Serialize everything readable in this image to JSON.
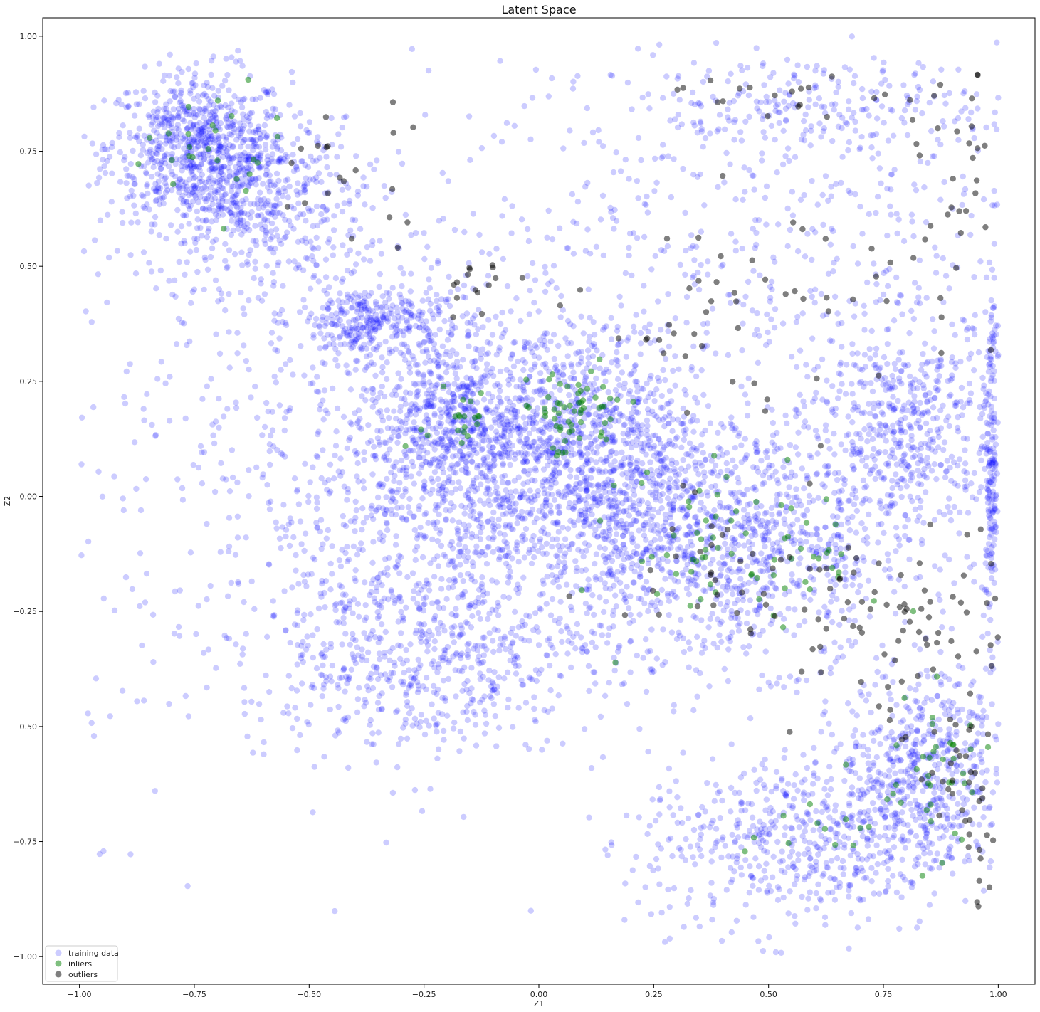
{
  "chart_data": {
    "type": "scatter",
    "title": "Latent Space",
    "xlabel": "Z1",
    "ylabel": "Z2",
    "xlim": [
      -1.08,
      1.08
    ],
    "ylim": [
      -1.06,
      1.04
    ],
    "x_ticks": [
      -1.0,
      -0.75,
      -0.5,
      -0.25,
      0.0,
      0.25,
      0.5,
      0.75,
      1.0
    ],
    "x_tick_labels": [
      "−1.00",
      "−0.75",
      "−0.50",
      "−0.25",
      "0.00",
      "0.25",
      "0.50",
      "0.75",
      "1.00"
    ],
    "y_ticks": [
      1.0,
      0.75,
      0.5,
      0.25,
      0.0,
      -0.25,
      -0.5,
      -0.75,
      -1.0
    ],
    "y_tick_labels": [
      "1.00",
      "0.75",
      "0.50",
      "0.25",
      "0.00",
      "−0.25",
      "−0.50",
      "−0.75",
      "−1.00"
    ],
    "grid": false,
    "legend_position": "bottom-left",
    "series": [
      {
        "name": "training data",
        "color": "#0000ff",
        "alpha": 0.2,
        "clusters": [
          {
            "center": [
              -0.74,
              0.76
            ],
            "spread": [
              0.1,
              0.08
            ],
            "n": 700
          },
          {
            "center": [
              -0.62,
              0.64
            ],
            "spread": [
              0.12,
              0.09
            ],
            "n": 500
          },
          {
            "center": [
              -0.37,
              0.38
            ],
            "spread": [
              0.08,
              0.04
            ],
            "n": 300
          },
          {
            "center": [
              -0.2,
              0.18
            ],
            "spread": [
              0.08,
              0.1
            ],
            "n": 400
          },
          {
            "center": [
              0.08,
              0.1
            ],
            "spread": [
              0.15,
              0.14
            ],
            "n": 1100
          },
          {
            "center": [
              0.42,
              -0.1
            ],
            "spread": [
              0.2,
              0.13
            ],
            "n": 1100
          },
          {
            "center": [
              -0.18,
              -0.02
            ],
            "spread": [
              0.22,
              0.2
            ],
            "n": 900
          },
          {
            "center": [
              -0.25,
              -0.35
            ],
            "spread": [
              0.2,
              0.1
            ],
            "n": 500
          },
          {
            "center": [
              0.8,
              0.15
            ],
            "spread": [
              0.1,
              0.12
            ],
            "n": 500
          },
          {
            "center": [
              0.84,
              -0.58
            ],
            "spread": [
              0.09,
              0.1
            ],
            "n": 500
          },
          {
            "center": [
              0.58,
              -0.75
            ],
            "spread": [
              0.18,
              0.1
            ],
            "n": 600
          },
          {
            "center": [
              0.6,
              0.85
            ],
            "spread": [
              0.25,
              0.05
            ],
            "n": 250
          },
          {
            "center": [
              0.45,
              0.55
            ],
            "spread": [
              0.35,
              0.2
            ],
            "n": 500
          },
          {
            "center": [
              -0.55,
              0.05
            ],
            "spread": [
              0.3,
              0.35
            ],
            "n": 400
          },
          {
            "center": [
              0.985,
              0.05
            ],
            "spread": [
              0.008,
              0.18
            ],
            "n": 200
          }
        ]
      },
      {
        "name": "inliers",
        "color": "#008000",
        "alpha": 0.5,
        "clusters": [
          {
            "center": [
              0.07,
              0.18
            ],
            "spread": [
              0.06,
              0.05
            ],
            "n": 60
          },
          {
            "center": [
              0.48,
              -0.12
            ],
            "spread": [
              0.14,
              0.09
            ],
            "n": 70
          },
          {
            "center": [
              -0.18,
              0.18
            ],
            "spread": [
              0.04,
              0.06
            ],
            "n": 20
          },
          {
            "center": [
              0.86,
              -0.6
            ],
            "spread": [
              0.06,
              0.08
            ],
            "n": 35
          },
          {
            "center": [
              0.65,
              -0.72
            ],
            "spread": [
              0.1,
              0.05
            ],
            "n": 15
          },
          {
            "center": [
              -0.72,
              0.75
            ],
            "spread": [
              0.08,
              0.07
            ],
            "n": 25
          }
        ]
      },
      {
        "name": "outliers",
        "color": "#000000",
        "alpha": 0.5,
        "clusters": [
          {
            "center": [
              0.78,
              -0.3
            ],
            "spread": [
              0.12,
              0.12
            ],
            "n": 70
          },
          {
            "center": [
              0.5,
              0.4
            ],
            "spread": [
              0.2,
              0.12
            ],
            "n": 50
          },
          {
            "center": [
              0.92,
              0.65
            ],
            "spread": [
              0.05,
              0.12
            ],
            "n": 30
          },
          {
            "center": [
              0.55,
              0.87
            ],
            "spread": [
              0.15,
              0.02
            ],
            "n": 20
          },
          {
            "center": [
              -0.42,
              0.7
            ],
            "spread": [
              0.1,
              0.08
            ],
            "n": 20
          },
          {
            "center": [
              0.45,
              -0.15
            ],
            "spread": [
              0.15,
              0.1
            ],
            "n": 40
          },
          {
            "center": [
              0.96,
              -0.75
            ],
            "spread": [
              0.02,
              0.08
            ],
            "n": 15
          },
          {
            "center": [
              0.9,
              -0.6
            ],
            "spread": [
              0.05,
              0.06
            ],
            "n": 20
          },
          {
            "center": [
              -0.12,
              0.46
            ],
            "spread": [
              0.05,
              0.03
            ],
            "n": 15
          }
        ]
      }
    ]
  }
}
